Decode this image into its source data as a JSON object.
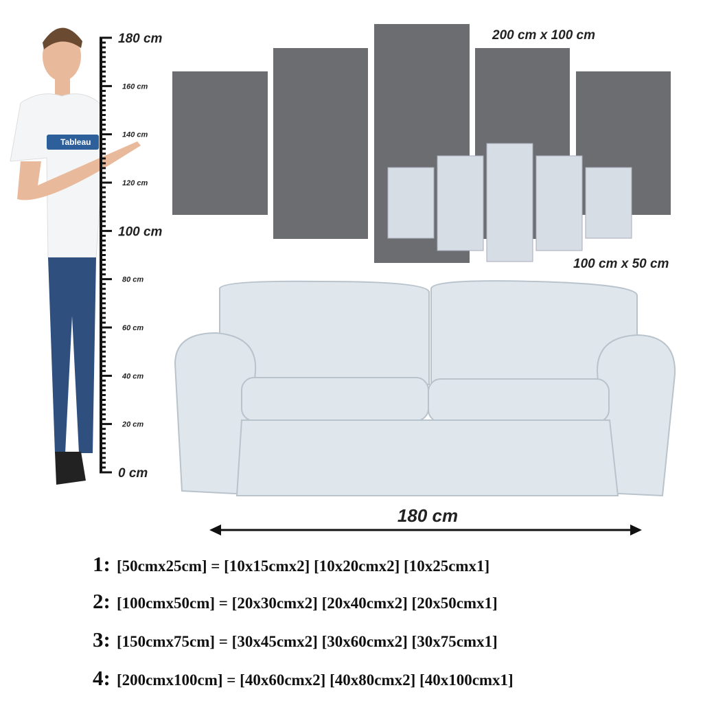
{
  "logo": "Tableau",
  "ruler": {
    "labels": [
      "180 cm",
      "160 cm",
      "140 cm",
      "120 cm",
      "100 cm",
      "80 cm",
      "60 cm",
      "40 cm",
      "20 cm",
      "0 cm"
    ]
  },
  "dimensions": {
    "large": "200 cm x 100 cm",
    "small": "100 cm x 50 cm",
    "width": "180 cm"
  },
  "sizes": [
    {
      "number": "1:",
      "text": "[50cmx25cm] = [10x15cmx2] [10x20cmx2] [10x25cmx1]"
    },
    {
      "number": "2:",
      "text": "[100cmx50cm] = [20x30cmx2] [20x40cmx2] [20x50cmx1]"
    },
    {
      "number": "3:",
      "text": "[150cmx75cm] = [30x45cmx2] [30x60cmx2] [30x75cmx1]"
    },
    {
      "number": "4:",
      "text": "[200cmx100cm] = [40x60cmx2] [40x80cmx2] [40x100cmx1]"
    }
  ]
}
